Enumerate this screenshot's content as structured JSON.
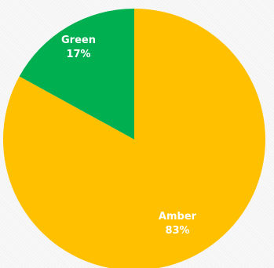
{
  "chart_data": {
    "type": "pie",
    "categories": [
      "Green",
      "Amber"
    ],
    "values": [
      17,
      83
    ],
    "value_labels": [
      "17%",
      "83%"
    ],
    "colors": [
      "#00b050",
      "#ffc000"
    ],
    "start": "12 o'clock",
    "direction": "counter-clockwise from top for Green, remainder Amber",
    "legend": "none",
    "title": ""
  }
}
